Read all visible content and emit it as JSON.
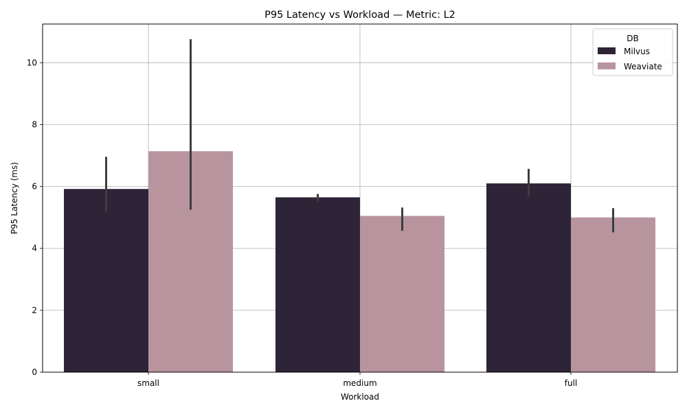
{
  "chart_data": {
    "type": "bar",
    "title": "P95 Latency vs Workload — Metric: L2",
    "xlabel": "Workload",
    "ylabel": "P95 Latency (ms)",
    "categories": [
      "small",
      "medium",
      "full"
    ],
    "ylim": [
      0,
      11.25
    ],
    "yticks": [
      "0",
      "2",
      "4",
      "6",
      "8",
      "10"
    ],
    "grid": true,
    "legend": {
      "title": "DB",
      "placement": "top-right"
    },
    "series": [
      {
        "name": "Milvus",
        "color": "#2e2437",
        "values": [
          5.92,
          5.65,
          6.1
        ],
        "err_low": [
          5.2,
          5.52,
          5.68
        ],
        "err_high": [
          6.96,
          5.76,
          6.57
        ]
      },
      {
        "name": "Weaviate",
        "color": "#b8949f",
        "values": [
          7.14,
          5.05,
          5.0
        ],
        "err_low": [
          5.25,
          4.57,
          4.52
        ],
        "err_high": [
          10.76,
          5.32,
          5.3
        ]
      }
    ]
  }
}
